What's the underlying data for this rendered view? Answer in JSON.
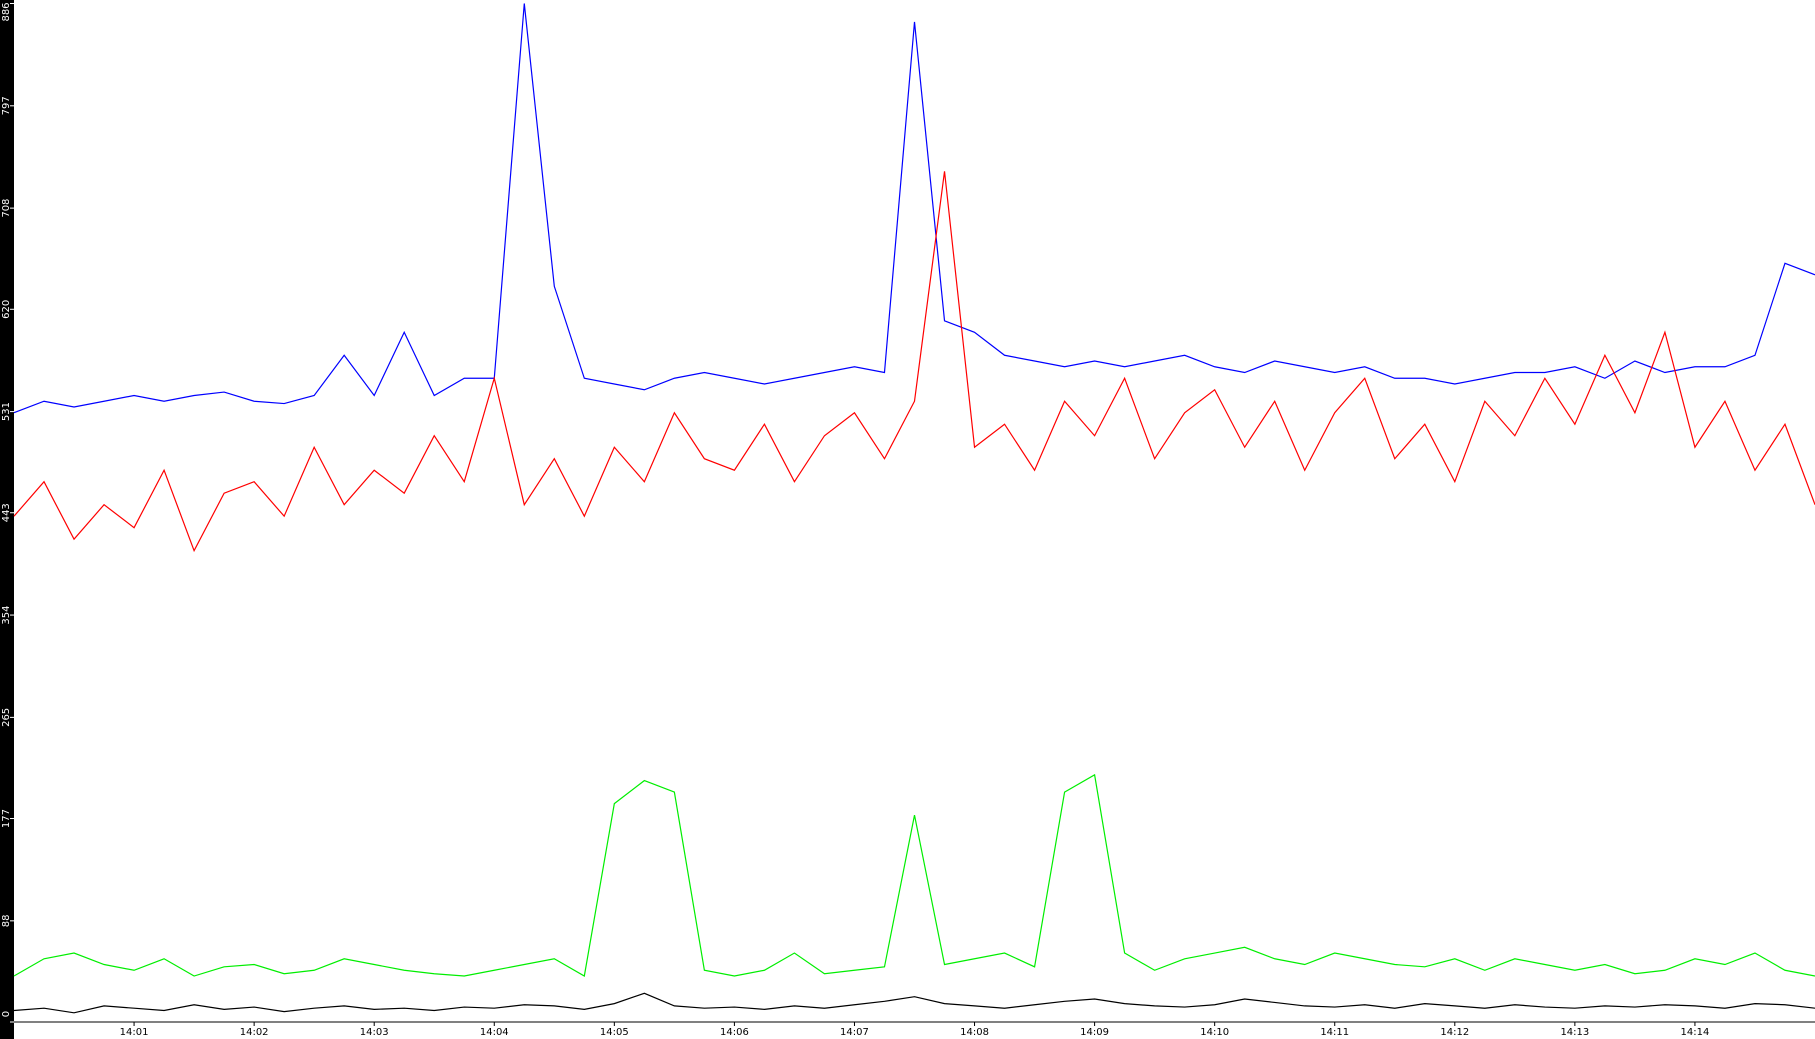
{
  "chart_data": {
    "type": "line",
    "x": [
      840,
      840.25,
      840.5,
      840.75,
      841,
      841.25,
      841.5,
      841.75,
      842,
      842.25,
      842.5,
      842.75,
      843,
      843.25,
      843.5,
      843.75,
      844,
      844.25,
      844.5,
      844.75,
      845,
      845.25,
      845.5,
      845.75,
      846,
      846.25,
      846.5,
      846.75,
      847,
      847.25,
      847.5,
      847.75,
      848,
      848.25,
      848.5,
      848.75,
      849,
      849.25,
      849.5,
      849.75,
      850,
      850.25,
      850.5,
      850.75,
      851,
      851.25,
      851.5,
      851.75,
      852,
      852.25,
      852.5,
      852.75,
      853,
      853.25,
      853.5,
      853.75,
      854,
      854.25,
      854.5,
      854.75,
      855
    ],
    "series": [
      {
        "color": "#0000ff",
        "values": [
          530,
          540,
          535,
          540,
          545,
          540,
          545,
          548,
          540,
          538,
          545,
          580,
          545,
          600,
          545,
          560,
          560,
          886,
          640,
          560,
          555,
          550,
          560,
          565,
          560,
          555,
          560,
          565,
          570,
          565,
          870,
          610,
          600,
          580,
          575,
          570,
          575,
          570,
          575,
          580,
          570,
          565,
          575,
          570,
          565,
          570,
          560,
          560,
          555,
          560,
          565,
          565,
          570,
          560,
          575,
          565,
          570,
          570,
          580,
          660,
          650
        ]
      },
      {
        "color": "#ff0000",
        "values": [
          440,
          470,
          420,
          450,
          430,
          480,
          410,
          460,
          470,
          440,
          500,
          450,
          480,
          460,
          510,
          470,
          560,
          450,
          490,
          440,
          500,
          470,
          530,
          490,
          480,
          520,
          470,
          510,
          530,
          490,
          540,
          740,
          500,
          520,
          480,
          540,
          510,
          560,
          490,
          530,
          550,
          500,
          540,
          480,
          530,
          560,
          490,
          520,
          470,
          540,
          510,
          560,
          520,
          580,
          530,
          600,
          500,
          540,
          480,
          520,
          450
        ]
      },
      {
        "color": "#00ee00",
        "values": [
          40,
          55,
          60,
          50,
          45,
          55,
          40,
          48,
          50,
          42,
          45,
          55,
          50,
          45,
          42,
          40,
          45,
          50,
          55,
          40,
          190,
          210,
          200,
          45,
          40,
          45,
          60,
          42,
          45,
          48,
          180,
          50,
          55,
          60,
          48,
          200,
          215,
          60,
          45,
          55,
          60,
          65,
          55,
          50,
          60,
          55,
          50,
          48,
          55,
          45,
          55,
          50,
          45,
          50,
          42,
          45,
          55,
          50,
          60,
          45,
          40
        ]
      },
      {
        "color": "#000000",
        "values": [
          10,
          12,
          8,
          14,
          12,
          10,
          15,
          11,
          13,
          9,
          12,
          14,
          11,
          12,
          10,
          13,
          12,
          15,
          14,
          11,
          16,
          25,
          14,
          12,
          13,
          11,
          14,
          12,
          15,
          18,
          22,
          16,
          14,
          12,
          15,
          18,
          20,
          16,
          14,
          13,
          15,
          20,
          17,
          14,
          13,
          15,
          12,
          16,
          14,
          12,
          15,
          13,
          12,
          14,
          13,
          15,
          14,
          12,
          16,
          15,
          12
        ]
      }
    ],
    "xlim": [
      840,
      855
    ],
    "xticks": [
      {
        "value": 841,
        "label": "14:01"
      },
      {
        "value": 842,
        "label": "14:02"
      },
      {
        "value": 843,
        "label": "14:03"
      },
      {
        "value": 844,
        "label": "14:04"
      },
      {
        "value": 845,
        "label": "14:05"
      },
      {
        "value": 846,
        "label": "14:06"
      },
      {
        "value": 847,
        "label": "14:07"
      },
      {
        "value": 848,
        "label": "14:08"
      },
      {
        "value": 849,
        "label": "14:09"
      },
      {
        "value": 850,
        "label": "14:10"
      },
      {
        "value": 851,
        "label": "14:11"
      },
      {
        "value": 852,
        "label": "14:12"
      },
      {
        "value": 853,
        "label": "14:13"
      },
      {
        "value": 854,
        "label": "14:14"
      }
    ],
    "ylim": [
      0,
      886
    ],
    "yticks": [
      0,
      88,
      177,
      265,
      354,
      443,
      531,
      620,
      708,
      797,
      886
    ]
  }
}
